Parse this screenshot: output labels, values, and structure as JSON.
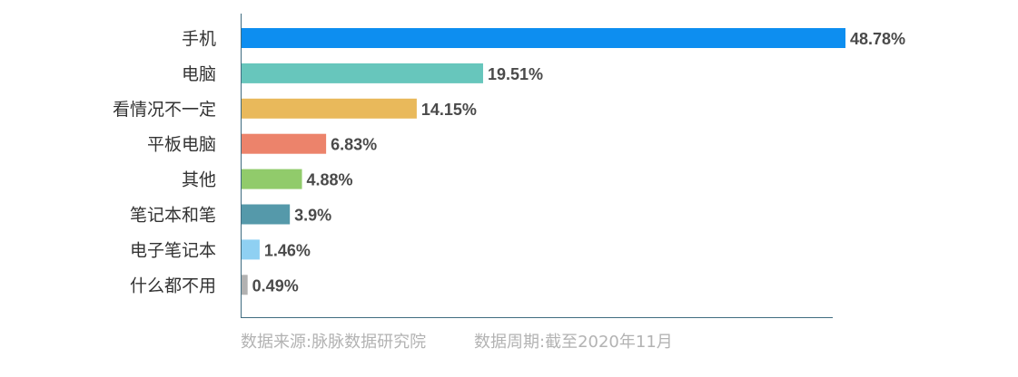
{
  "chart_data": {
    "type": "bar",
    "orientation": "horizontal",
    "categories": [
      "手机",
      "电脑",
      "看情况不一定",
      "平板电脑",
      "其他",
      "笔记本和笔",
      "电子笔记本",
      "什么都不用"
    ],
    "values": [
      48.78,
      19.51,
      14.15,
      6.83,
      4.88,
      3.9,
      1.46,
      0.49
    ],
    "value_labels": [
      "48.78%",
      "19.51%",
      "14.15%",
      "6.83%",
      "4.88%",
      "3.9%",
      "1.46%",
      "0.49%"
    ],
    "colors": [
      "#0d8ef0",
      "#67c6bc",
      "#e9b95b",
      "#ec836b",
      "#91cb6b",
      "#5599aa",
      "#8fd0f2",
      "#b1b1b1"
    ],
    "xlim": [
      0,
      48.78
    ],
    "grid": false,
    "legend": "none"
  },
  "footer": {
    "source": "数据来源:脉脉数据研究院",
    "period": "数据周期:截至2020年11月"
  }
}
